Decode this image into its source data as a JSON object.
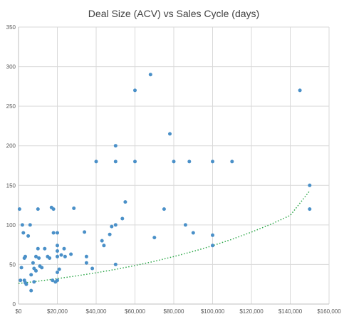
{
  "chart_data": {
    "type": "scatter",
    "title": "Deal Size (ACV) vs Sales Cycle (days)",
    "xlabel": "",
    "ylabel": "",
    "xlim": [
      0,
      160000
    ],
    "ylim": [
      0,
      350
    ],
    "x_ticks": [
      0,
      20000,
      40000,
      60000,
      80000,
      100000,
      120000,
      140000,
      160000
    ],
    "x_tick_labels": [
      "$0",
      "$20,000",
      "$40,000",
      "$60,000",
      "$80,000",
      "$100,000",
      "$120,000",
      "$140,000",
      "$160,000"
    ],
    "y_ticks": [
      0,
      50,
      100,
      150,
      200,
      250,
      300,
      350
    ],
    "y_tick_labels": [
      "0",
      "50",
      "100",
      "150",
      "200",
      "250",
      "300",
      "350"
    ],
    "grid": true,
    "legend": "none",
    "series": [
      {
        "color": "#4a90c8",
        "points": [
          [
            500,
            120
          ],
          [
            1000,
            30
          ],
          [
            1500,
            46
          ],
          [
            2000,
            100
          ],
          [
            2500,
            90
          ],
          [
            3000,
            58
          ],
          [
            3000,
            30
          ],
          [
            3500,
            27
          ],
          [
            3500,
            60
          ],
          [
            4000,
            25
          ],
          [
            5000,
            86
          ],
          [
            6000,
            100
          ],
          [
            6500,
            17
          ],
          [
            6500,
            37
          ],
          [
            7500,
            52
          ],
          [
            8000,
            28
          ],
          [
            8000,
            45
          ],
          [
            9000,
            60
          ],
          [
            9000,
            42
          ],
          [
            10000,
            120
          ],
          [
            10000,
            70
          ],
          [
            10500,
            58
          ],
          [
            11000,
            48
          ],
          [
            12000,
            46
          ],
          [
            13500,
            70
          ],
          [
            15000,
            60
          ],
          [
            16000,
            58
          ],
          [
            17000,
            122
          ],
          [
            17500,
            30
          ],
          [
            18000,
            120
          ],
          [
            18000,
            90
          ],
          [
            19000,
            28
          ],
          [
            20000,
            90
          ],
          [
            20000,
            74
          ],
          [
            20000,
            67
          ],
          [
            20000,
            60
          ],
          [
            20000,
            40
          ],
          [
            20000,
            30
          ],
          [
            21000,
            44
          ],
          [
            22000,
            62
          ],
          [
            23500,
            70
          ],
          [
            24000,
            60
          ],
          [
            27000,
            63
          ],
          [
            28500,
            121
          ],
          [
            34000,
            91
          ],
          [
            35000,
            60
          ],
          [
            35000,
            52
          ],
          [
            38000,
            45
          ],
          [
            40000,
            180
          ],
          [
            43000,
            80
          ],
          [
            44000,
            74
          ],
          [
            47000,
            88
          ],
          [
            48000,
            98
          ],
          [
            50000,
            200
          ],
          [
            50000,
            180
          ],
          [
            50000,
            100
          ],
          [
            50000,
            50
          ],
          [
            53500,
            108
          ],
          [
            55000,
            129
          ],
          [
            60000,
            270
          ],
          [
            60000,
            180
          ],
          [
            68000,
            290
          ],
          [
            70000,
            84
          ],
          [
            75000,
            120
          ],
          [
            78000,
            215
          ],
          [
            80000,
            180
          ],
          [
            86000,
            100
          ],
          [
            88000,
            180
          ],
          [
            90000,
            90
          ],
          [
            100000,
            180
          ],
          [
            100000,
            87
          ],
          [
            100000,
            74
          ],
          [
            110000,
            180
          ],
          [
            145000,
            270
          ],
          [
            150000,
            150
          ],
          [
            150000,
            120
          ]
        ]
      }
    ],
    "trendline": {
      "type": "exponential",
      "color": "#2ea84a",
      "style": "dotted",
      "x_range": [
        0,
        150000
      ],
      "points": [
        [
          0,
          26
        ],
        [
          10000,
          28.9
        ],
        [
          20000,
          32.1
        ],
        [
          30000,
          35.6
        ],
        [
          40000,
          39.5
        ],
        [
          50000,
          43.8
        ],
        [
          60000,
          48.7
        ],
        [
          70000,
          54.0
        ],
        [
          80000,
          60.0
        ],
        [
          90000,
          66.5
        ],
        [
          100000,
          73.8
        ],
        [
          110000,
          81.9
        ],
        [
          120000,
          90.9
        ],
        [
          130000,
          100.9
        ],
        [
          140000,
          112.0
        ],
        [
          150000,
          143
        ]
      ]
    }
  }
}
